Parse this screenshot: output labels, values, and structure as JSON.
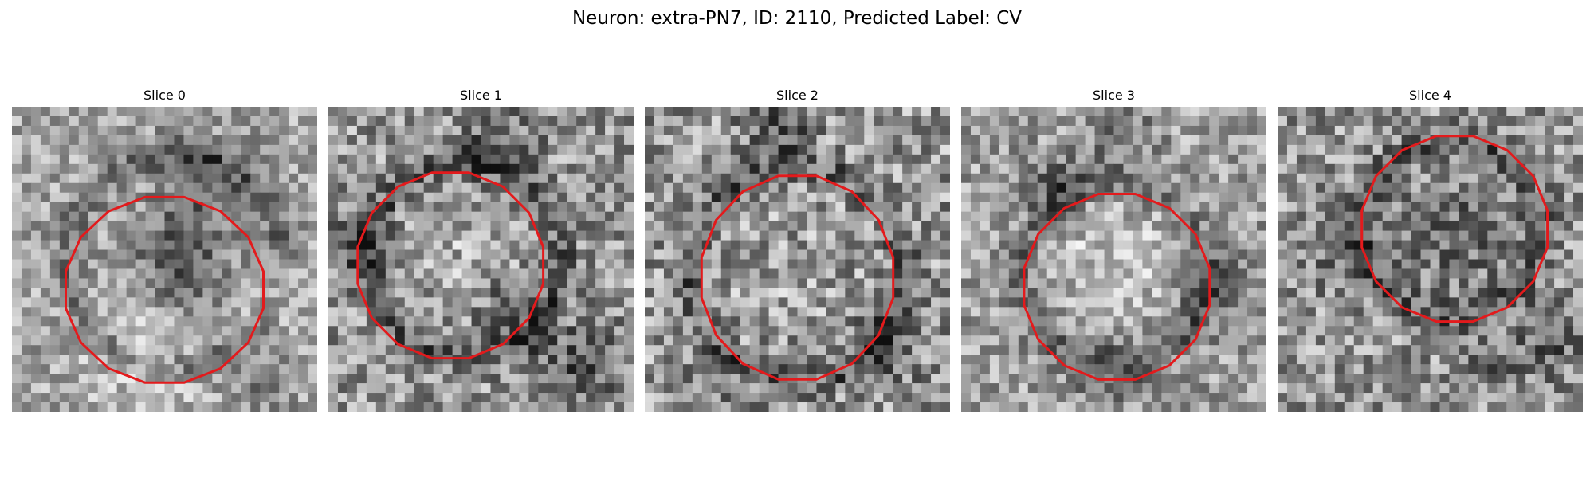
{
  "figure": {
    "title": "Neuron: extra-PN7, ID: 2110, Predicted Label: CV"
  },
  "slices": [
    {
      "label": "Slice 0"
    },
    {
      "label": "Slice 1"
    },
    {
      "label": "Slice 2"
    },
    {
      "label": "Slice 3"
    },
    {
      "label": "Slice 4"
    }
  ],
  "colors": {
    "outline": "#e31a1c",
    "background": "#ffffff"
  }
}
